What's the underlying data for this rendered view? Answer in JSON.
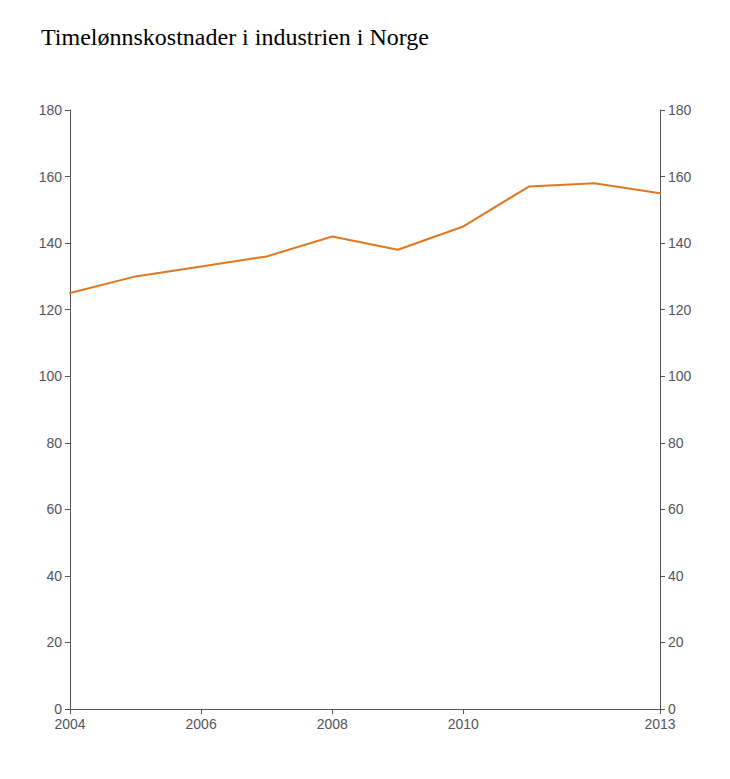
{
  "chart_data": {
    "type": "line",
    "title": "Timelønnskostnader i industrien i Norge",
    "x": [
      2004,
      2005,
      2006,
      2007,
      2008,
      2009,
      2010,
      2011,
      2012,
      2013
    ],
    "values": [
      125,
      130,
      133,
      136,
      142,
      138,
      145,
      157,
      158,
      155
    ],
    "color": "#E07820",
    "xlim": [
      2004,
      2013
    ],
    "xticks": [
      2004,
      2006,
      2008,
      2010,
      2013
    ],
    "ylim": [
      0,
      180
    ],
    "yticks": [
      0,
      20,
      40,
      60,
      80,
      100,
      120,
      140,
      160,
      180
    ],
    "y2lim": [
      0,
      180
    ],
    "y2ticks": [
      0,
      20,
      40,
      60,
      80,
      100,
      120,
      140,
      160,
      180
    ],
    "grid": false
  }
}
